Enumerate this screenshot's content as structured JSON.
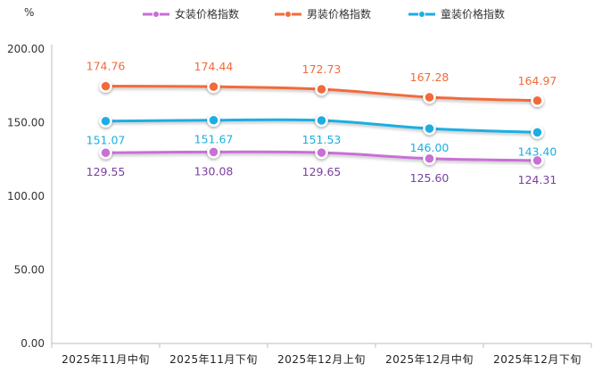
{
  "chart_data": {
    "type": "line",
    "title": "",
    "ylabel": "%",
    "xlabel": "",
    "ylim": [
      0,
      200
    ],
    "yticks": [
      "0.00",
      "50.00",
      "100.00",
      "150.00",
      "200.00"
    ],
    "grid": false,
    "legend_position": "top",
    "categories": [
      "2025年11月中旬",
      "2025年11月下旬",
      "2025年12月上旬",
      "2025年12月中旬",
      "2025年12月下旬"
    ],
    "series": [
      {
        "name": "女装价格指数",
        "values": [
          129.55,
          130.08,
          129.65,
          125.6,
          124.31
        ],
        "labels": [
          "129.55",
          "130.08",
          "129.65",
          "125.60",
          "124.31"
        ],
        "color": "#c86fd6",
        "label_color": "#7b3fa0",
        "label_side": "below"
      },
      {
        "name": "男装价格指数",
        "values": [
          174.76,
          174.44,
          172.73,
          167.28,
          164.97
        ],
        "labels": [
          "174.76",
          "174.44",
          "172.73",
          "167.28",
          "164.97"
        ],
        "color": "#f26b3a",
        "label_color": "#f26b3a",
        "label_side": "above"
      },
      {
        "name": "童装价格指数",
        "values": [
          151.07,
          151.67,
          151.53,
          146.0,
          143.4
        ],
        "labels": [
          "151.07",
          "151.67",
          "151.53",
          "146.00",
          "143.40"
        ],
        "color": "#1aaee3",
        "label_color": "#1aaee3",
        "label_side": "below"
      }
    ]
  }
}
